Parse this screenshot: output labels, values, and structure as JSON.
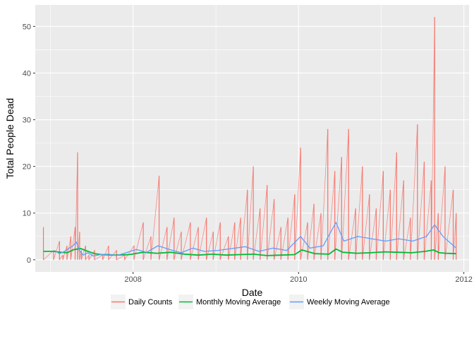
{
  "chart_data": {
    "type": "line",
    "title": "",
    "xlabel": "Date",
    "ylabel": "Total People Dead",
    "x_ticks": [
      "2008",
      "2010",
      "2012"
    ],
    "y_ticks": [
      "0",
      "10",
      "20",
      "30",
      "40",
      "50"
    ],
    "xlim": [
      "2006-10-26",
      "2012-01-24"
    ],
    "ylim": [
      -2.6,
      54.6
    ],
    "grid": true,
    "legend_position": "bottom",
    "series": [
      {
        "name": "Daily Counts",
        "color": "#F8766D",
        "x": [
          "2006-12-01",
          "2007-01-15",
          "2007-02-10",
          "2007-02-25",
          "2007-03-15",
          "2007-04-01",
          "2007-04-20",
          "2007-05-01",
          "2007-05-10",
          "2007-05-18",
          "2007-06-05",
          "2007-06-20",
          "2007-07-15",
          "2007-08-20",
          "2007-09-15",
          "2007-10-20",
          "2007-11-25",
          "2008-01-05",
          "2008-02-15",
          "2008-03-20",
          "2008-04-25",
          "2008-05-30",
          "2008-06-30",
          "2008-08-01",
          "2008-09-10",
          "2008-10-15",
          "2008-11-20",
          "2008-12-20",
          "2009-01-20",
          "2009-02-25",
          "2009-03-25",
          "2009-04-20",
          "2009-05-20",
          "2009-06-15",
          "2009-07-15",
          "2009-08-15",
          "2009-09-15",
          "2009-10-15",
          "2009-11-15",
          "2009-12-15",
          "2010-01-10",
          "2010-02-10",
          "2010-03-10",
          "2010-04-10",
          "2010-05-10",
          "2010-06-10",
          "2010-07-10",
          "2010-08-10",
          "2010-09-10",
          "2010-10-10",
          "2010-11-10",
          "2010-12-10",
          "2011-01-10",
          "2011-02-10",
          "2011-03-10",
          "2011-04-10",
          "2011-05-10",
          "2011-06-10",
          "2011-07-10",
          "2011-08-10",
          "2011-08-25",
          "2011-09-10",
          "2011-10-10",
          "2011-11-15",
          "2011-11-28"
        ],
        "values": [
          7,
          2,
          4,
          1,
          3,
          5,
          7,
          23,
          6,
          2,
          3,
          1,
          2,
          1,
          3,
          2,
          1,
          3,
          8,
          5,
          18,
          7,
          9,
          6,
          8,
          7,
          9,
          6,
          8,
          5,
          8,
          9,
          15,
          20,
          11,
          16,
          13,
          7,
          9,
          14,
          24,
          8,
          12,
          10,
          28,
          19,
          22,
          28,
          11,
          20,
          14,
          11,
          19,
          15,
          23,
          17,
          9,
          29,
          21,
          17,
          52,
          10,
          20,
          15,
          10
        ]
      },
      {
        "name": "Monthly Moving Average",
        "color": "#00BA38",
        "x": [
          "2006-12-01",
          "2007-01-15",
          "2007-02-15",
          "2007-03-15",
          "2007-04-15",
          "2007-05-15",
          "2007-06-15",
          "2007-07-15",
          "2007-08-15",
          "2007-10-15",
          "2007-12-15",
          "2008-02-15",
          "2008-04-15",
          "2008-06-15",
          "2008-08-15",
          "2008-10-15",
          "2008-12-15",
          "2009-02-15",
          "2009-04-15",
          "2009-06-15",
          "2009-08-15",
          "2009-10-15",
          "2009-12-15",
          "2010-01-15",
          "2010-03-15",
          "2010-05-15",
          "2010-06-15",
          "2010-07-15",
          "2010-09-15",
          "2010-11-15",
          "2011-01-15",
          "2011-03-15",
          "2011-05-15",
          "2011-07-15",
          "2011-08-20",
          "2011-09-15",
          "2011-10-15",
          "2011-11-28"
        ],
        "values": [
          1.8,
          1.8,
          1.6,
          1.5,
          2.2,
          2.4,
          1.8,
          1.3,
          1.1,
          1.0,
          1.1,
          1.6,
          1.4,
          1.6,
          1.2,
          1.0,
          1.2,
          1.0,
          1.1,
          1.2,
          0.9,
          1.0,
          1.1,
          2.1,
          1.3,
          1.2,
          2.3,
          1.6,
          1.4,
          1.5,
          1.7,
          1.6,
          1.5,
          1.8,
          2.1,
          1.5,
          1.4,
          1.3
        ]
      },
      {
        "name": "Weekly Moving Average",
        "color": "#619CFF",
        "x": [
          "2007-01-20",
          "2007-02-10",
          "2007-03-05",
          "2007-03-25",
          "2007-04-10",
          "2007-04-25",
          "2007-05-10",
          "2007-05-25",
          "2007-06-15",
          "2007-07-10",
          "2007-08-10",
          "2007-09-15",
          "2007-10-20",
          "2007-12-01",
          "2008-01-15",
          "2008-03-01",
          "2008-04-20",
          "2008-06-10",
          "2008-08-01",
          "2008-09-20",
          "2008-11-10",
          "2009-01-10",
          "2009-03-10",
          "2009-05-10",
          "2009-07-10",
          "2009-09-10",
          "2009-11-10",
          "2010-01-10",
          "2010-02-20",
          "2010-04-20",
          "2010-06-15",
          "2010-07-20",
          "2010-09-20",
          "2010-11-20",
          "2011-01-20",
          "2011-03-20",
          "2011-05-20",
          "2011-07-20",
          "2011-08-25",
          "2011-10-01",
          "2011-11-28"
        ],
        "values": [
          2.0,
          1.3,
          1.8,
          2.5,
          3.0,
          3.8,
          2.0,
          1.0,
          1.5,
          0.8,
          1.1,
          1.2,
          0.9,
          1.5,
          2.2,
          1.6,
          3.0,
          2.2,
          1.5,
          2.5,
          1.8,
          2.0,
          2.4,
          2.8,
          1.8,
          2.5,
          2.0,
          5.0,
          2.5,
          3.0,
          8.0,
          4.0,
          5.0,
          4.5,
          4.0,
          4.5,
          4.0,
          5.0,
          7.5,
          5.0,
          2.5
        ]
      }
    ]
  }
}
